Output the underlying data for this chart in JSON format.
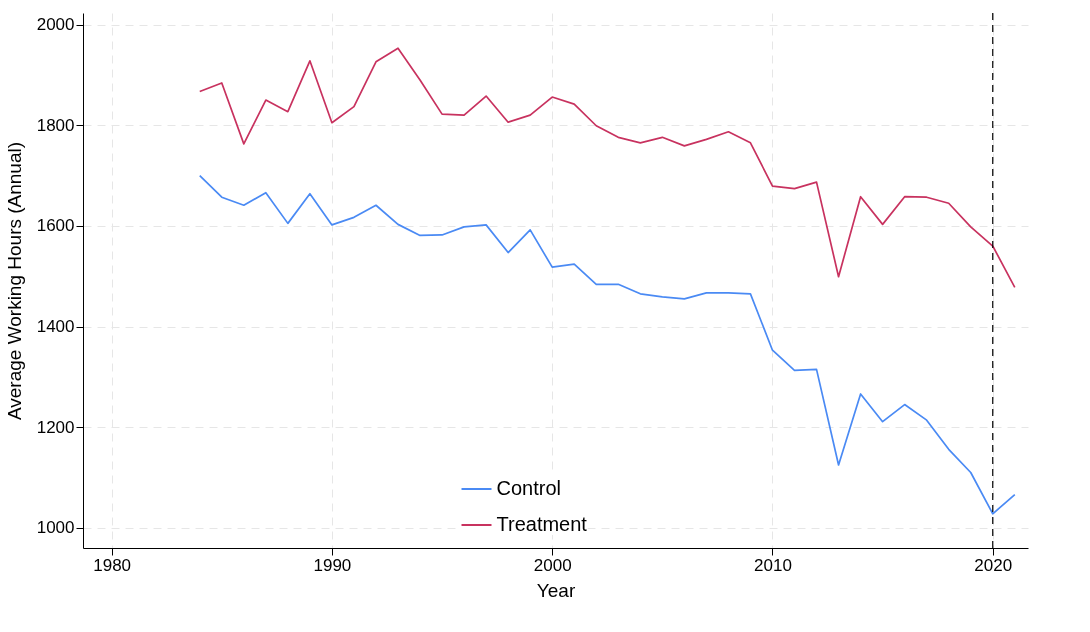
{
  "chart_data": {
    "type": "line",
    "xlabel": "Year",
    "ylabel": "Average Working Hours (Annual)",
    "x": [
      1984,
      1985,
      1986,
      1987,
      1988,
      1989,
      1990,
      1991,
      1992,
      1993,
      1994,
      1995,
      1996,
      1997,
      1998,
      1999,
      2000,
      2001,
      2002,
      2003,
      2004,
      2005,
      2006,
      2007,
      2008,
      2009,
      2010,
      2011,
      2012,
      2013,
      2014,
      2015,
      2016,
      2017,
      2018,
      2019,
      2020,
      2021
    ],
    "series": [
      {
        "name": "Control",
        "color": "#4a8af4",
        "values": [
          1700,
          1657,
          1641,
          1666,
          1605,
          1664,
          1602,
          1617,
          1641,
          1603,
          1581,
          1582,
          1598,
          1602,
          1547,
          1592,
          1518,
          1524,
          1484,
          1484,
          1465,
          1459,
          1455,
          1467,
          1467,
          1465,
          1353,
          1313,
          1315,
          1125,
          1266,
          1211,
          1245,
          1214,
          1156,
          1110,
          1028,
          1066
        ]
      },
      {
        "name": "Treatment",
        "color": "#c8325f",
        "values": [
          1867,
          1884,
          1763,
          1850,
          1827,
          1928,
          1805,
          1837,
          1926,
          1953,
          1890,
          1822,
          1820,
          1858,
          1806,
          1820,
          1856,
          1842,
          1799,
          1776,
          1765,
          1776,
          1759,
          1772,
          1787,
          1765,
          1679,
          1674,
          1687,
          1499,
          1658,
          1603,
          1658,
          1657,
          1645,
          1598,
          1560,
          1478
        ]
      }
    ],
    "xlim": [
      1978.7,
      2021.6
    ],
    "xticks": [
      1980,
      1990,
      2000,
      2010,
      2020
    ],
    "ylim": [
      960,
      2023
    ],
    "yticks": [
      1000,
      1200,
      1400,
      1600,
      1800,
      2000
    ],
    "grid": true,
    "legend": "bottom",
    "line_style": "solid",
    "ref_lines": [
      {
        "axis": "x",
        "value": 2020,
        "line_style": "dashed",
        "color": "#000000"
      }
    ]
  }
}
